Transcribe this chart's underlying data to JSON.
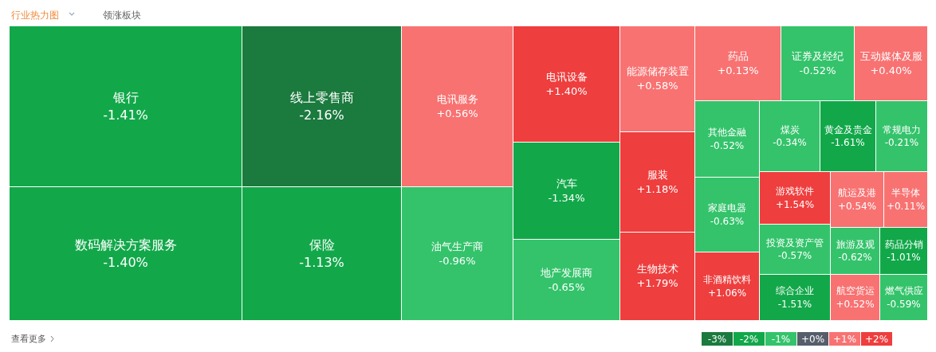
{
  "chart_data": [
    {
      "type": "other",
      "annotations": [
        "行业热力图",
        "领涨板块",
        "查看更多"
      ],
      "categories": [
        "银行",
        "数码解决方案服务",
        "线上零售商",
        "保险",
        "电讯服务",
        "油气生产商",
        "电讯设备",
        "汽车",
        "地产发展商",
        "能源储存装置",
        "服装",
        "生物技术",
        "药品",
        "证券及经纪",
        "互动媒体及服",
        "其他金融",
        "煤炭",
        "黄金及贵金",
        "常规电力",
        "家庭电器",
        "非酒精饮料",
        "游戏软件",
        "投资及资产管",
        "综合企业",
        "航运及港",
        "半导体",
        "旅游及观",
        "药品分销",
        "航空货运",
        "燃气供应"
      ],
      "value_labels": [
        "-1.41%",
        "-1.40%",
        "-2.16%",
        "-1.13%",
        "+0.56%",
        "-0.96%",
        "+1.40%",
        "-1.34%",
        "-0.65%",
        "+0.58%",
        "+1.18%",
        "+1.79%",
        "+0.13%",
        "-0.52%",
        "+0.40%",
        "-0.52%",
        "-0.34%",
        "-1.61%",
        "-0.21%",
        "-0.63%",
        "+1.06%",
        "+1.54%",
        "-0.57%",
        "-1.51%",
        "+0.54%",
        "+0.11%",
        "-0.62%",
        "-1.01%",
        "+0.52%",
        "-0.59%"
      ],
      "values": [
        -1.41,
        -1.4,
        -2.16,
        -1.13,
        0.56,
        -0.96,
        1.4,
        -1.34,
        -0.65,
        0.58,
        1.18,
        1.79,
        0.13,
        -0.52,
        0.4,
        -0.52,
        -0.34,
        -1.61,
        -0.21,
        -0.63,
        1.06,
        1.54,
        -0.57,
        -1.51,
        0.54,
        0.11,
        -0.62,
        -1.01,
        0.52,
        -0.59
      ]
    },
    {
      "type": "heatmap",
      "categories": [
        null,
        null,
        null,
        null,
        null,
        null
      ],
      "y_categories": [
        null
      ],
      "cells": [
        [
          -3,
          -2,
          -1,
          0,
          1,
          2
        ]
      ],
      "cell_labels": [
        [
          "-3%",
          "-2%",
          "-1%",
          "+0%",
          "+1%",
          "+2%"
        ]
      ],
      "colors": [
        "#1b7a3e",
        "#12a84a",
        "#34c36b",
        "#565d6b",
        "#f87272",
        "#ee3e3e"
      ]
    }
  ]
}
